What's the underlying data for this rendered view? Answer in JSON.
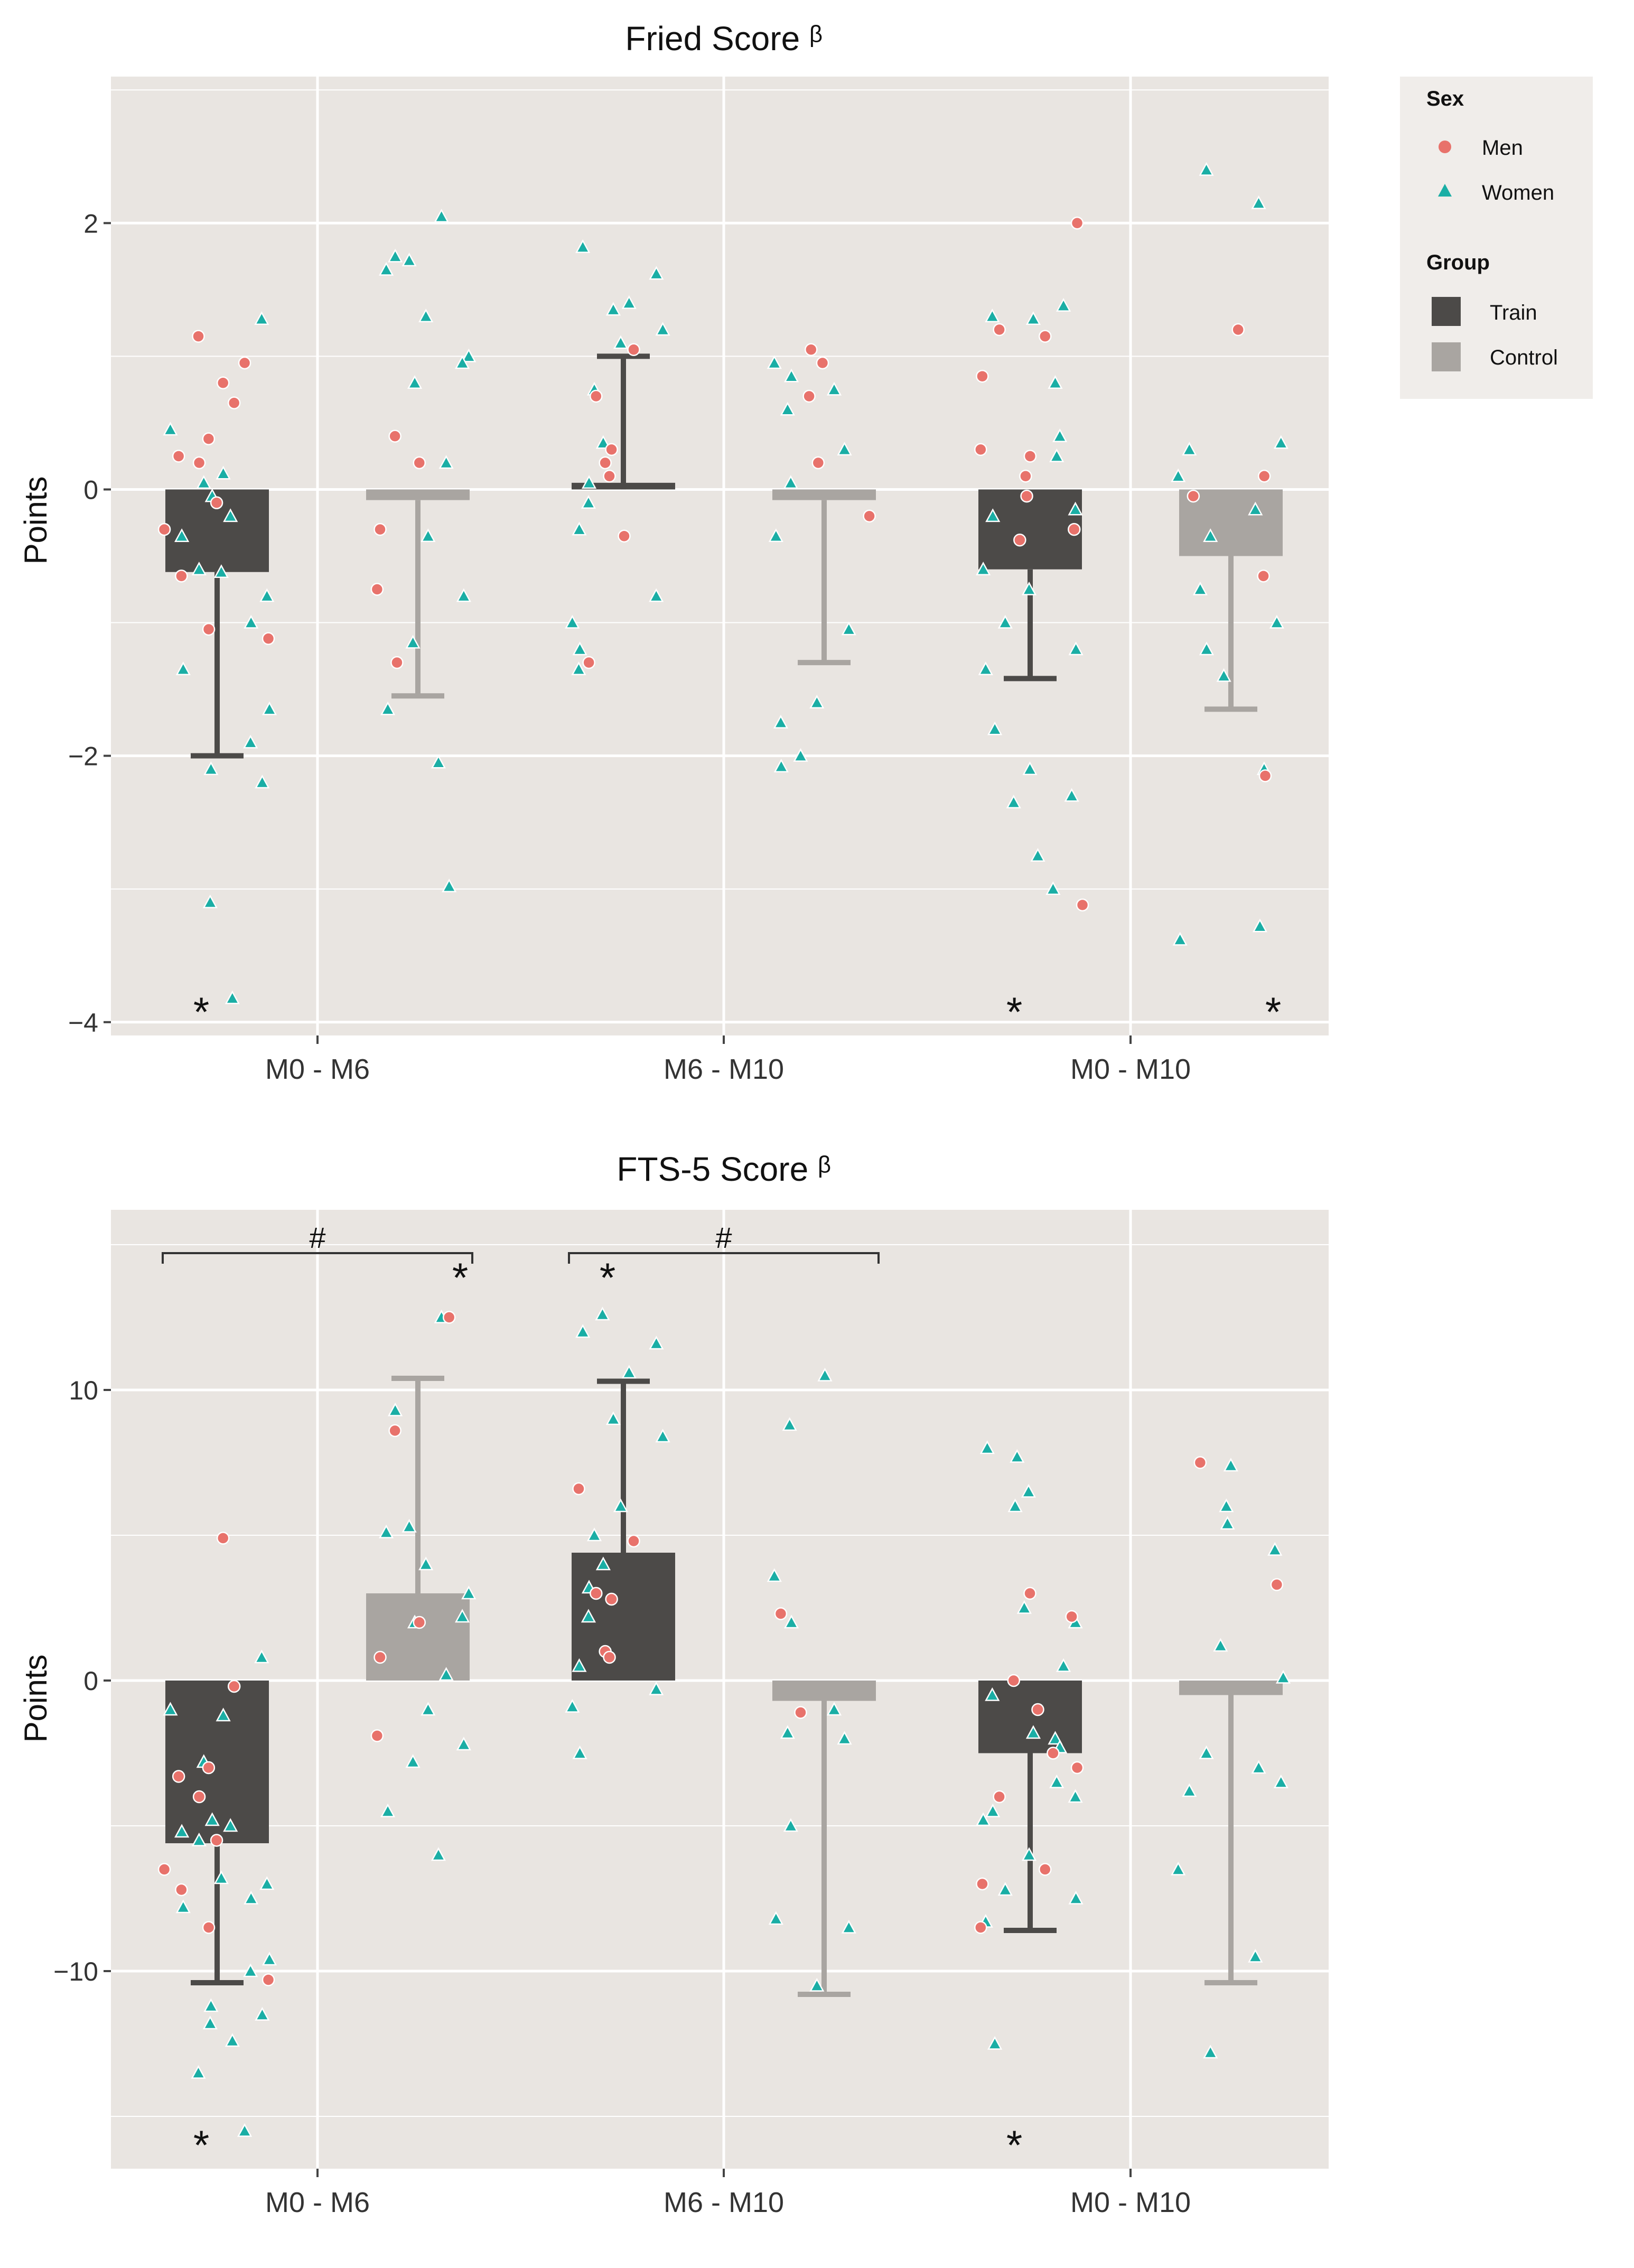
{
  "legend": {
    "sex_title": "Sex",
    "sex_items": [
      {
        "label": "Men",
        "color": "#e8726b",
        "shape": "circle"
      },
      {
        "label": "Women",
        "color": "#1aaea5",
        "shape": "triangle"
      }
    ],
    "group_title": "Group",
    "group_items": [
      {
        "label": "Train",
        "color": "#4c4a48"
      },
      {
        "label": "Control",
        "color": "#a9a5a1"
      }
    ]
  },
  "colors": {
    "panel_bg": "#e9e5e1",
    "grid": "#ffffff",
    "train": "#4c4a48",
    "control": "#a9a5a1",
    "men": "#e8726b",
    "women": "#1aaea5"
  },
  "chart_data": [
    {
      "type": "bar",
      "title": "Fried Score ᵝ",
      "ylabel": "Points",
      "xlabel": "",
      "categories": [
        "M0 - M6",
        "M6 - M10",
        "M0 - M10"
      ],
      "ylim": [
        -4.1,
        3.1
      ],
      "yticks": [
        -4,
        -2,
        0,
        2
      ],
      "ytick_labels": [
        "−4",
        "−2",
        "0",
        "2"
      ],
      "series": [
        {
          "name": "Train",
          "values": [
            -0.62,
            0.05,
            -0.6
          ],
          "error_lower": [
            -2.0,
            0.0,
            -1.42
          ],
          "error_upper": [
            -0.62,
            1.0,
            -0.6
          ]
        },
        {
          "name": "Control",
          "values": [
            -0.08,
            -0.08,
            -0.5
          ],
          "error_lower": [
            -1.55,
            -1.3,
            -1.65
          ],
          "error_upper": [
            -0.08,
            -0.08,
            -0.5
          ]
        }
      ],
      "significance_stars": [
        {
          "group": "Train",
          "category": "M0 - M6",
          "label": "*"
        },
        {
          "group": "Train",
          "category": "M0 - M10",
          "label": "*"
        },
        {
          "group": "Control",
          "category": "M0 - M10",
          "label": "*"
        }
      ],
      "between_group_brackets": [],
      "points": [
        {
          "group": "Train",
          "category": "M0 - M6",
          "men": [
            1.15,
            0.95,
            0.8,
            0.65,
            0.38,
            0.25,
            0.2,
            -0.1,
            -0.3,
            -0.65,
            -1.05,
            -1.12
          ],
          "women": [
            1.28,
            0.45,
            0.12,
            0.05,
            -0.05,
            -0.2,
            -0.35,
            -0.6,
            -0.62,
            -0.8,
            -1.0,
            -1.35,
            -1.65,
            -1.9,
            -2.1,
            -2.2,
            -3.1,
            -3.82
          ]
        },
        {
          "group": "Control",
          "category": "M0 - M6",
          "men": [
            0.4,
            0.2,
            -0.3,
            -0.75,
            -1.3
          ],
          "women": [
            2.05,
            1.75,
            1.72,
            1.65,
            1.3,
            1.0,
            0.95,
            0.8,
            0.2,
            -0.35,
            -0.8,
            -1.15,
            -1.65,
            -2.05,
            -2.98
          ]
        },
        {
          "group": "Train",
          "category": "M6 - M10",
          "men": [
            1.05,
            0.7,
            0.3,
            0.2,
            0.1,
            -0.35,
            -1.3
          ],
          "women": [
            1.82,
            1.62,
            1.4,
            1.35,
            1.2,
            1.1,
            0.75,
            0.35,
            0.05,
            -0.1,
            -0.3,
            -0.8,
            -1.0,
            -1.2,
            -1.35
          ]
        },
        {
          "group": "Control",
          "category": "M6 - M10",
          "men": [
            1.05,
            0.95,
            0.7,
            0.2,
            -0.2
          ],
          "women": [
            0.95,
            0.85,
            0.75,
            0.6,
            0.3,
            0.05,
            -0.35,
            -1.05,
            -1.6,
            -1.75,
            -2.0,
            -2.08
          ]
        },
        {
          "group": "Train",
          "category": "M0 - M10",
          "men": [
            2.0,
            1.2,
            1.15,
            0.85,
            0.3,
            0.25,
            0.1,
            -0.05,
            -0.3,
            -0.38,
            -3.12
          ],
          "women": [
            1.38,
            1.3,
            1.28,
            0.8,
            0.4,
            0.25,
            -0.15,
            -0.2,
            -0.6,
            -0.75,
            -1.0,
            -1.2,
            -1.35,
            -1.8,
            -2.1,
            -2.3,
            -2.35,
            -2.75,
            -3.0
          ]
        },
        {
          "group": "Control",
          "category": "M0 - M10",
          "men": [
            1.2,
            0.1,
            -0.05,
            -0.65,
            -2.15
          ],
          "women": [
            2.4,
            2.15,
            0.35,
            0.3,
            0.1,
            -0.15,
            -0.35,
            -0.75,
            -1.0,
            -1.2,
            -1.4,
            -2.1,
            -3.28,
            -3.38
          ]
        }
      ]
    },
    {
      "type": "bar",
      "title": "FTS-5 Score ᵝ",
      "ylabel": "Points",
      "xlabel": "",
      "categories": [
        "M0 - M6",
        "M6 - M10",
        "M0 - M10"
      ],
      "ylim": [
        -16.8,
        16.2
      ],
      "yticks": [
        -10,
        0,
        10
      ],
      "ytick_labels": [
        "−10",
        "0",
        "10"
      ],
      "series": [
        {
          "name": "Train",
          "values": [
            -5.6,
            4.4,
            -2.5
          ],
          "error_lower": [
            -10.4,
            0.0,
            -8.6
          ],
          "error_upper": [
            -5.6,
            10.3,
            -2.5
          ]
        },
        {
          "name": "Control",
          "values": [
            3.0,
            -0.7,
            -0.5
          ],
          "error_lower": [
            0.0,
            -10.8,
            -10.4
          ],
          "error_upper": [
            10.4,
            -0.7,
            -0.5
          ]
        }
      ],
      "significance_stars": [
        {
          "group": "Train",
          "category": "M0 - M6",
          "label": "*"
        },
        {
          "group": "Control",
          "category": "M0 - M6",
          "label": "*"
        },
        {
          "group": "Train",
          "category": "M6 - M10",
          "label": "*"
        },
        {
          "group": "Train",
          "category": "M0 - M10",
          "label": "*"
        }
      ],
      "between_group_brackets": [
        {
          "category": "M0 - M6",
          "label": "#"
        },
        {
          "category": "M6 - M10",
          "label": "#"
        }
      ],
      "points": [
        {
          "group": "Train",
          "category": "M0 - M6",
          "men": [
            4.9,
            -0.2,
            -3.0,
            -3.3,
            -4.0,
            -5.5,
            -6.5,
            -7.2,
            -8.5,
            -10.3
          ],
          "women": [
            0.8,
            -1.0,
            -1.2,
            -2.8,
            -4.8,
            -5.0,
            -5.2,
            -5.5,
            -6.8,
            -7.0,
            -7.5,
            -7.8,
            -9.6,
            -10.0,
            -11.2,
            -11.5,
            -11.8,
            -12.4,
            -13.5,
            -15.5
          ]
        },
        {
          "group": "Control",
          "category": "M0 - M6",
          "men": [
            12.5,
            8.6,
            2.0,
            0.8,
            -1.9
          ],
          "women": [
            12.5,
            9.3,
            5.3,
            5.1,
            4.0,
            3.0,
            2.2,
            2.0,
            0.2,
            -1.0,
            -2.2,
            -2.8,
            -4.5,
            -6.0
          ]
        },
        {
          "group": "Train",
          "category": "M6 - M10",
          "men": [
            6.6,
            4.8,
            3.0,
            2.8,
            1.0,
            0.8
          ],
          "women": [
            12.6,
            12.0,
            11.6,
            10.6,
            9.0,
            8.4,
            6.0,
            5.0,
            4.0,
            3.2,
            2.2,
            0.5,
            -0.3,
            -0.9,
            -2.5
          ]
        },
        {
          "group": "Control",
          "category": "M6 - M10",
          "men": [
            2.3,
            -1.1
          ],
          "women": [
            10.5,
            8.8,
            3.6,
            2.0,
            -1.0,
            -1.8,
            -2.0,
            -5.0,
            -8.2,
            -8.5,
            -10.5
          ]
        },
        {
          "group": "Train",
          "category": "M0 - M10",
          "men": [
            3.0,
            2.2,
            0.0,
            -1.0,
            -2.5,
            -3.0,
            -4.0,
            -6.5,
            -7.0,
            -8.5
          ],
          "women": [
            8.0,
            7.7,
            6.5,
            6.0,
            2.5,
            2.0,
            0.5,
            -0.5,
            -1.8,
            -2.0,
            -2.3,
            -3.5,
            -4.0,
            -4.5,
            -4.8,
            -6.0,
            -7.2,
            -7.5,
            -8.3,
            -12.5
          ]
        },
        {
          "group": "Control",
          "category": "M0 - M10",
          "men": [
            7.5,
            3.3
          ],
          "women": [
            7.4,
            6.0,
            5.4,
            4.5,
            1.2,
            0.1,
            -2.5,
            -3.0,
            -3.5,
            -3.8,
            -6.5,
            -9.5,
            -12.8
          ]
        }
      ]
    }
  ]
}
